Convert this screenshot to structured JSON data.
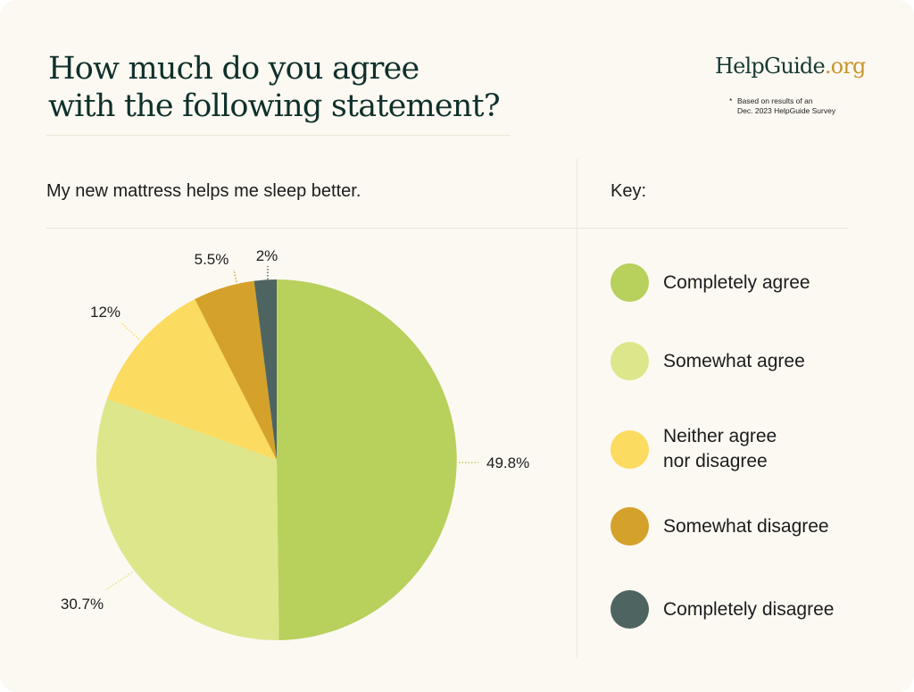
{
  "header": {
    "title_lines": [
      "How much do you agree",
      "with the following statement?"
    ],
    "brand_name": "HelpGuide",
    "brand_tld": ".org",
    "note_star": "*",
    "note_lines": [
      "Based on results of an",
      "Dec. 2023 HelpGuide Survey"
    ]
  },
  "question": "My new mattress helps me sleep better.",
  "key_title": "Key:",
  "colors": {
    "completely_agree": "#b8d05c",
    "somewhat_agree": "#dde68b",
    "neither": "#fbdb60",
    "somewhat_disagree": "#d4a12b",
    "completely_disagree": "#4e6460",
    "title": "#0f302b",
    "brand_tld": "#c9962a",
    "background": "#fcf9f2"
  },
  "chart_data": {
    "type": "pie",
    "title": "My new mattress helps me sleep better.",
    "start": "top",
    "direction": "clockwise",
    "legend_position": "right",
    "legend_title": "Key:",
    "slices": [
      {
        "label": "Completely agree",
        "value": 49.8,
        "display": "49.8%",
        "color": "#b8d05c"
      },
      {
        "label": "Somewhat agree",
        "value": 30.7,
        "display": "30.7%",
        "color": "#dde68b"
      },
      {
        "label": "Neither agree\nnor disagree",
        "value": 12,
        "display": "12%",
        "color": "#fbdb60"
      },
      {
        "label": "Somewhat disagree",
        "value": 5.5,
        "display": "5.5%",
        "color": "#d4a12b"
      },
      {
        "label": "Completely disagree",
        "value": 2,
        "display": "2%",
        "color": "#4e6460"
      }
    ]
  }
}
